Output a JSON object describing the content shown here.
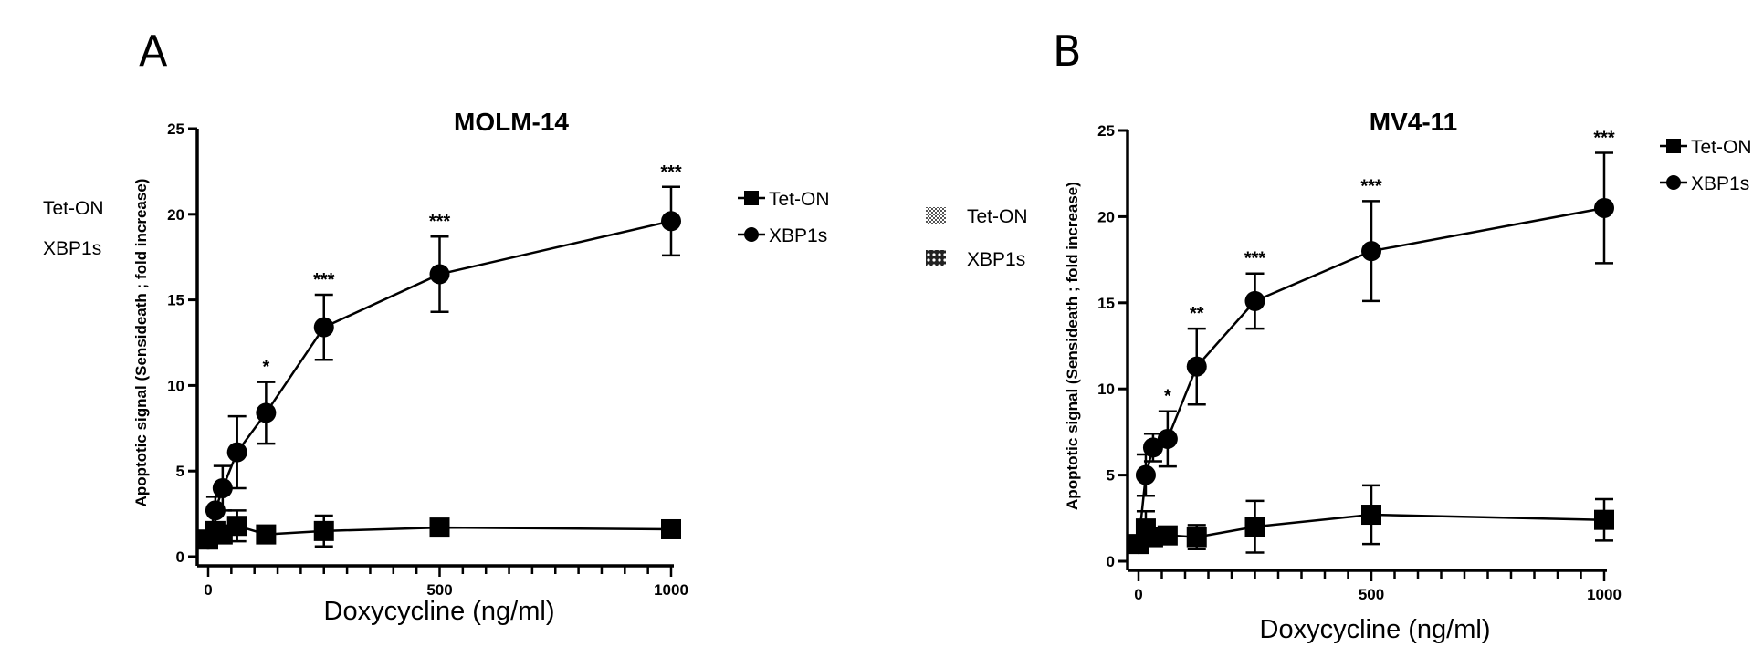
{
  "side_labels": [
    "Tet-ON",
    "XBP1s"
  ],
  "middle_legend": [
    "Tet-ON",
    "XBP1s"
  ],
  "chart_data": [
    {
      "panel": "A",
      "type": "line",
      "title": "MOLM-14",
      "xlabel": "Doxycycline (ng/ml)",
      "ylabel": "Apoptotic signal (Sensideath ; fold increase)",
      "xlim": [
        0,
        1000
      ],
      "ylim": [
        0,
        25
      ],
      "xticks": [
        0,
        500,
        1000
      ],
      "yticks": [
        0,
        5,
        10,
        15,
        20,
        25
      ],
      "x": [
        0,
        15.6,
        31.25,
        62.5,
        125,
        250,
        500,
        1000
      ],
      "legend": "right",
      "series": [
        {
          "name": "Tet-ON",
          "marker": "square",
          "values": [
            1.0,
            1.5,
            1.3,
            1.8,
            1.3,
            1.5,
            1.7,
            1.6
          ],
          "errors": [
            0.3,
            0.5,
            0.4,
            0.9,
            0.2,
            0.9,
            0.5,
            0.5
          ]
        },
        {
          "name": "XBP1s",
          "marker": "circle",
          "values": [
            1.0,
            2.7,
            4.0,
            6.1,
            8.4,
            13.4,
            16.5,
            19.6
          ],
          "errors": [
            0.2,
            0.8,
            1.3,
            2.1,
            1.8,
            1.9,
            2.2,
            2.0
          ]
        }
      ],
      "significance": [
        null,
        null,
        null,
        null,
        "*",
        "***",
        "***",
        "***"
      ]
    },
    {
      "panel": "B",
      "type": "line",
      "title": "MV4-11",
      "xlabel": "Doxycycline (ng/ml)",
      "ylabel": "Apoptotic signal (Sensideath ; fold increase)",
      "xlim": [
        0,
        1000
      ],
      "ylim": [
        0,
        25
      ],
      "xticks": [
        0,
        500,
        1000
      ],
      "yticks": [
        0,
        5,
        10,
        15,
        20,
        25
      ],
      "x": [
        0,
        15.6,
        31.25,
        62.5,
        125,
        250,
        500,
        1000
      ],
      "legend": "top-right",
      "series": [
        {
          "name": "Tet-ON",
          "marker": "square",
          "values": [
            1.0,
            1.9,
            1.4,
            1.5,
            1.4,
            2.0,
            2.7,
            2.4
          ],
          "errors": [
            0.4,
            1.0,
            0.3,
            0.5,
            0.7,
            1.5,
            1.7,
            1.2
          ]
        },
        {
          "name": "XBP1s",
          "marker": "circle",
          "values": [
            1.0,
            5.0,
            6.6,
            7.1,
            11.3,
            15.1,
            18.0,
            20.5
          ],
          "errors": [
            0.2,
            1.2,
            0.8,
            1.6,
            2.2,
            1.6,
            2.9,
            3.2
          ]
        }
      ],
      "significance": [
        null,
        null,
        null,
        "*",
        "**",
        "***",
        "***",
        "***"
      ]
    }
  ]
}
